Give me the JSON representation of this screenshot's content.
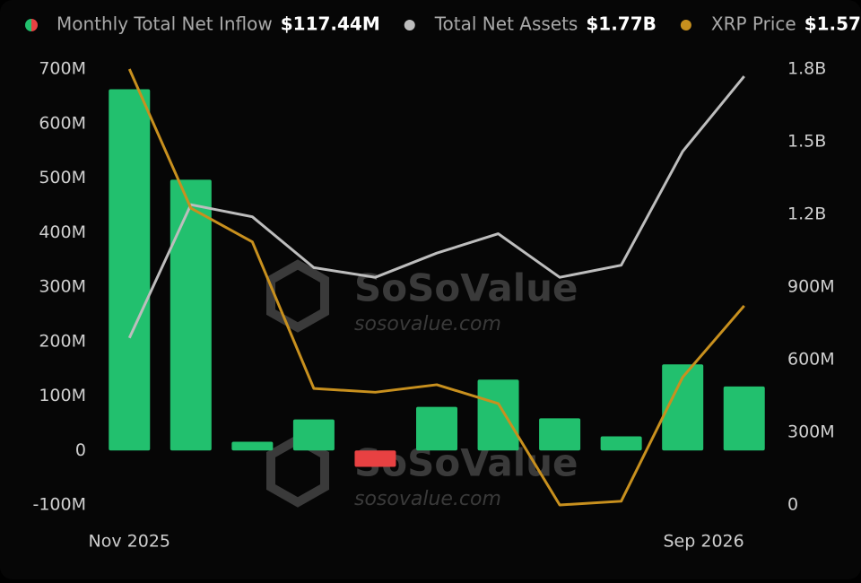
{
  "chart_data": {
    "type": "bar",
    "categories": [
      "Nov 2025",
      null,
      null,
      null,
      null,
      null,
      null,
      null,
      null,
      null,
      "Sep 2026"
    ],
    "series": [
      {
        "name": "Monthly Total Net Inflow",
        "legend_value": "$117.44M",
        "type": "bar",
        "color": "#22c06e",
        "negative_color": "#e84142",
        "values": [
          663000000,
          497000000,
          16000000,
          57000000,
          -30000000,
          80000000,
          130000000,
          59000000,
          26000000,
          158000000,
          117440000
        ]
      },
      {
        "name": "Total Net Assets",
        "legend_value": "$1.77B",
        "type": "line",
        "axis": "y2",
        "color": "#bdbdbd",
        "values": [
          690000000,
          1240000000,
          1190000000,
          980000000,
          940000000,
          1040000000,
          1120000000,
          940000000,
          990000000,
          1460000000,
          1770000000
        ]
      },
      {
        "name": "XRP Price",
        "legend_value": "$1.57",
        "type": "line",
        "axis": "y3",
        "color": "#c8901e",
        "values": [
          2.2,
          1.83,
          1.74,
          1.35,
          1.34,
          1.36,
          1.31,
          1.04,
          1.05,
          1.38,
          1.57
        ]
      }
    ],
    "ylim": [
      -100000000,
      700000000
    ],
    "yticks": [
      {
        "value": -100000000,
        "label": "-100M"
      },
      0,
      {
        "value": 100000000,
        "label": "100M"
      },
      {
        "value": 200000000,
        "label": "200M"
      },
      {
        "value": 300000000,
        "label": "300M"
      },
      {
        "value": 400000000,
        "label": "400M"
      },
      {
        "value": 500000000,
        "label": "500M"
      },
      {
        "value": 600000000,
        "label": "600M"
      },
      {
        "value": 700000000,
        "label": "700M"
      }
    ],
    "y2lim": [
      0,
      1800000000
    ],
    "y2ticks": [
      0,
      {
        "value": 300000000,
        "label": "300M"
      },
      {
        "value": 600000000,
        "label": "600M"
      },
      {
        "value": 900000000,
        "label": "900M"
      },
      {
        "value": 1200000000,
        "label": "1.2B"
      },
      {
        "value": 1500000000,
        "label": "1.5B"
      },
      {
        "value": 1800000000,
        "label": "1.8B"
      }
    ],
    "grid": false,
    "watermark": {
      "brand": "SoSoValue",
      "url": "sosovalue.com"
    }
  }
}
